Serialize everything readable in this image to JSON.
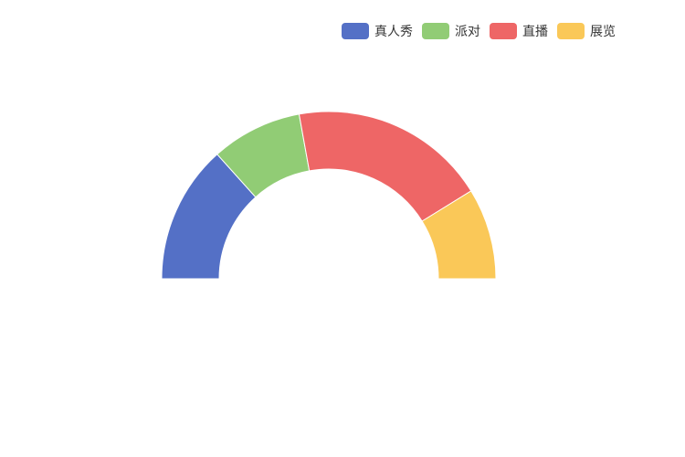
{
  "chart_data": {
    "type": "pie",
    "subtype": "half-doughnut",
    "legend_position": "top-right",
    "categories": [
      "真人秀",
      "派对",
      "直播",
      "展览"
    ],
    "values": [
      735,
      484,
      1048,
      484
    ],
    "colors": [
      "#5470c6",
      "#91cc75",
      "#ee6666",
      "#fac858"
    ]
  }
}
